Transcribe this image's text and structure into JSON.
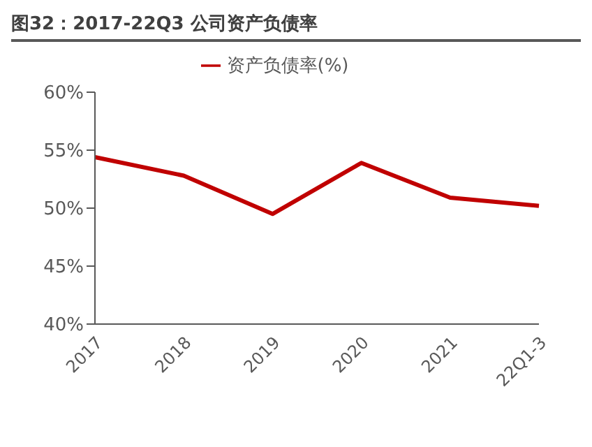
{
  "chart_data": {
    "type": "line",
    "title": "图32：2017-22Q3 公司资产负债率",
    "categories": [
      "2017",
      "2018",
      "2019",
      "2020",
      "2021",
      "22Q1-3"
    ],
    "series": [
      {
        "name": "资产负债率(%)",
        "color": "#c00000",
        "values": [
          54.4,
          52.8,
          49.5,
          53.9,
          50.9,
          50.2
        ]
      }
    ],
    "ylim": [
      40,
      60
    ],
    "yticks": [
      {
        "value": 40,
        "label": "40%"
      },
      {
        "value": 45,
        "label": "45%"
      },
      {
        "value": 50,
        "label": "50%"
      },
      {
        "value": 55,
        "label": "55%"
      },
      {
        "value": 60,
        "label": "60%"
      }
    ],
    "grid": false,
    "legend": "top",
    "marker": "none",
    "line_style": "solid"
  }
}
